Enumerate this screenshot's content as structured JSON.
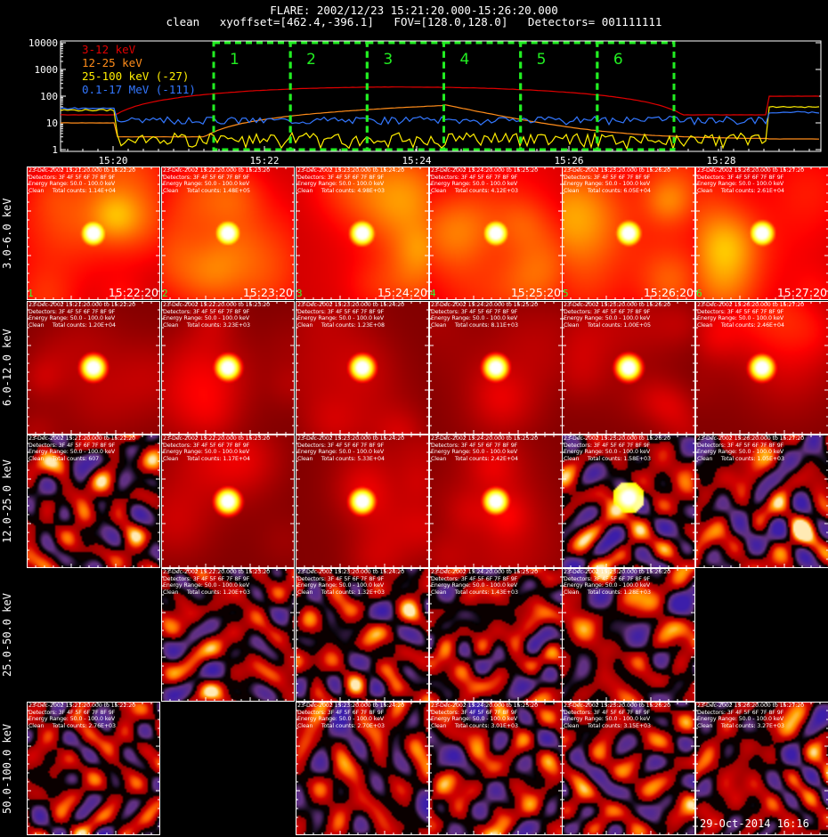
{
  "header": {
    "title": "FLARE: 2002/12/23 15:21:20.000-15:26:20.000",
    "subtitle": "clean   xyoffset=[462.4,-396.1]   FOV=[128.0,128.0]   Detectors= 001111111"
  },
  "lightcurve": {
    "y_ticks": [
      "10000",
      "1000",
      "100",
      "10",
      "1"
    ],
    "x_ticks": [
      "15:20",
      "15:22",
      "15:24",
      "15:26",
      "15:28"
    ],
    "legend": [
      {
        "label": "3-12 keV",
        "color": "#e00000"
      },
      {
        "label": "12-25 keV",
        "color": "#ff8c1a"
      },
      {
        "label": "25-100 keV (-27)",
        "color": "#ffee00"
      },
      {
        "label": "0.1-17 MeV (-111)",
        "color": "#3377ff"
      }
    ],
    "interval_labels": [
      "1",
      "2",
      "3",
      "4",
      "5",
      "6"
    ],
    "interval_color": "#22ee22",
    "series_levels": [
      {
        "name": "3-12 keV",
        "pre": 20,
        "peak": 220,
        "post": 100
      },
      {
        "name": "12-25 keV",
        "pre": 10,
        "peak": 45,
        "post": 2.5
      },
      {
        "name": "25-100 keV (-27)",
        "pre": 30,
        "peak": 2,
        "post": 40
      },
      {
        "name": "0.1-17 MeV (-111)",
        "pre": 35,
        "peak": 12,
        "post": 25
      }
    ]
  },
  "row_labels": [
    "3.0-6.0 keV",
    "6.0-12.0 keV",
    "12.0-25.0 keV",
    "25.0-50.0 keV",
    "50.0-100.0 keV"
  ],
  "panel_text": {
    "detectors": "Detectors: 3F 4F 5F 6F 7F 8F 9F",
    "energy": "Energy Range: 50.0 - 100.0 keV",
    "clean_prefix": "Clean     Total counts: "
  },
  "times": [
    "23-Dec-2002 15:21:20.000 to 15:22:20",
    "23-Dec-2002 15:22:20.000 to 15:23:20",
    "23-Dec-2002 15:23:20.000 to 15:24:20",
    "23-Dec-2002 15:24:20.000 to 15:25:20",
    "23-Dec-2002 15:25:20.000 to 15:26:20",
    "23-Dec-2002 15:26:20.000 to 15:27:20"
  ],
  "end_times": [
    "15:22:20",
    "15:23:20",
    "15:24:20",
    "15:25:20",
    "15:26:20",
    "15:27:20"
  ],
  "counts": [
    [
      "1.14E+04",
      "1.48E+05",
      "4.98E+03",
      "4.12E+03",
      "6.05E+04",
      "2.61E+04"
    ],
    [
      "1.20E+04",
      "3.23E+03",
      "1.23E+08",
      "8.11E+03",
      "1.00E+05",
      "2.46E+04"
    ],
    [
      "607",
      "1.17E+04",
      "5.33E+04",
      "2.42E+04",
      "1.58E+03",
      "1.05E+03"
    ],
    [
      null,
      "1.20E+03",
      "1.32E+03",
      "1.43E+03",
      "1.28E+03",
      null
    ],
    [
      "2.76E+03",
      null,
      "2.70E+03",
      "3.01E+03",
      "3.15E+03",
      "3.27E+03"
    ]
  ],
  "panel_types": [
    [
      "source",
      "source",
      "source",
      "source",
      "source",
      "source"
    ],
    [
      "source",
      "source",
      "source",
      "source",
      "source",
      "source"
    ],
    [
      "noise",
      "source",
      "source",
      "source",
      "mixed",
      "noise"
    ],
    [
      "empty",
      "noise",
      "noise",
      "noise",
      "noise",
      "empty"
    ],
    [
      "noise",
      "empty",
      "noise",
      "noise",
      "noise",
      "noise"
    ]
  ],
  "stamp": "29-Oct-2014 16:16"
}
